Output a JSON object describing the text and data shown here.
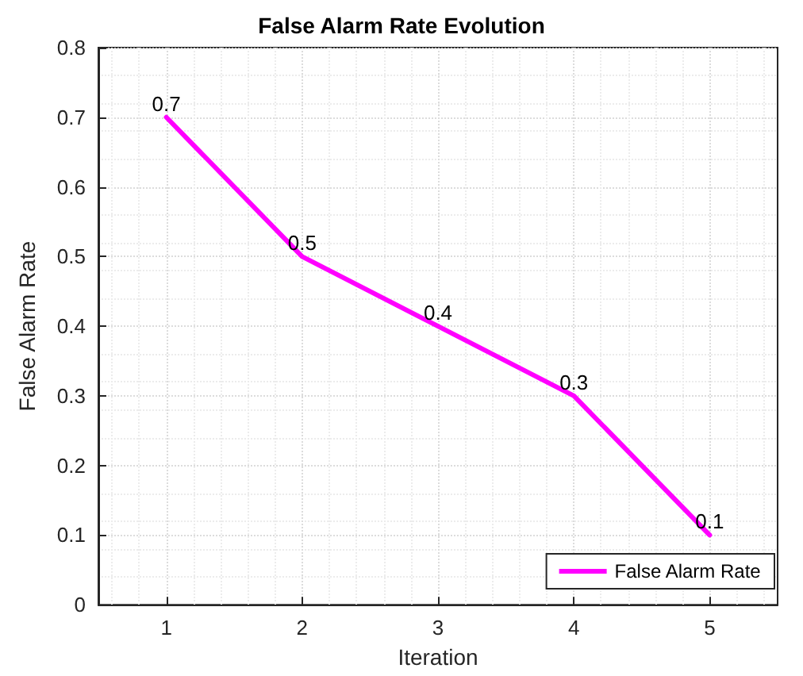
{
  "chart_data": {
    "type": "line",
    "title": "False Alarm Rate Evolution",
    "xlabel": "Iteration",
    "ylabel": "False Alarm Rate",
    "x": [
      1,
      2,
      3,
      4,
      5
    ],
    "series": [
      {
        "name": "False Alarm Rate",
        "color": "#ff00ff",
        "values": [
          0.7,
          0.5,
          0.4,
          0.3,
          0.1
        ]
      }
    ],
    "xlim": [
      0.5,
      5.5
    ],
    "xticks": [
      1,
      2,
      3,
      4,
      5
    ],
    "ylim": [
      0,
      0.8
    ],
    "yticks": [
      0,
      0.1,
      0.2,
      0.3,
      0.4,
      0.5,
      0.6,
      0.7,
      0.8
    ],
    "grid": true,
    "legend": "bottom right",
    "data_labels": true,
    "marker": "none",
    "line_style": "solid"
  }
}
